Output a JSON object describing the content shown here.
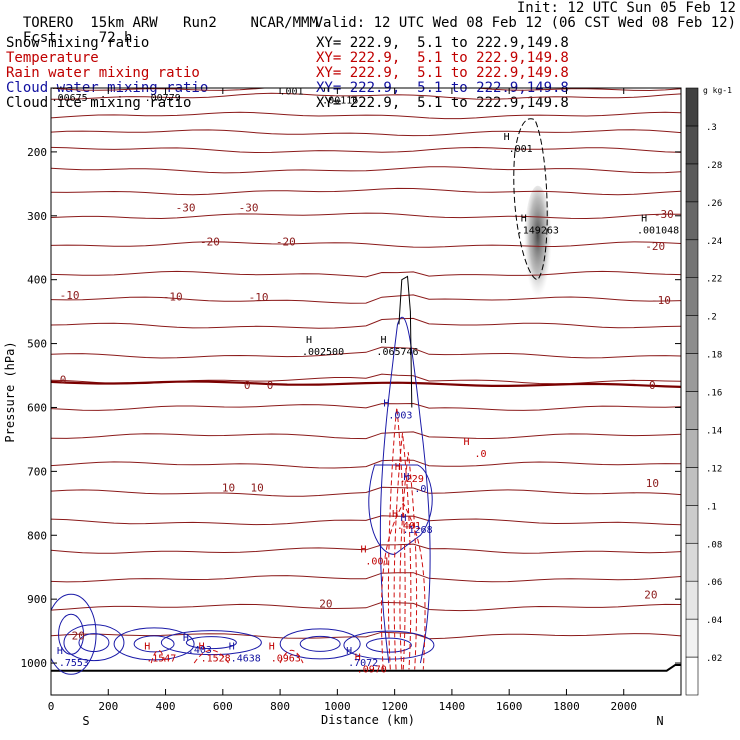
{
  "header": {
    "model": "TORERO",
    "resolution": "15km ARW",
    "run": "Run2",
    "org": "NCAR/MMM",
    "init": "Init: 12 UTC Sun 05 Feb 12",
    "fcst_label": "Fcst:",
    "fcst_hours": "72 h",
    "valid": "Valid: 12 UTC Wed 08 Feb 12 (06 CST Wed 08 Feb 12)"
  },
  "fields": [
    {
      "name": "Snow mixing ratio",
      "xy": "XY= 222.9,  5.1 to 222.9,149.8",
      "color": "#000000"
    },
    {
      "name": "Temperature",
      "xy": "XY= 222.9,  5.1 to 222.9,149.8",
      "color": "#c00000"
    },
    {
      "name": "Rain water mixing ratio",
      "xy": "XY= 222.9,  5.1 to 222.9,149.8",
      "color": "#c00000"
    },
    {
      "name": "Cloud water mixing ratio",
      "xy": "XY= 222.9,  5.1 to 222.9,149.8",
      "color": "#1010a0"
    },
    {
      "name": "Cloud ice mixing ratio",
      "xy": "XY= 222.9,  5.1 to 222.9,149.8",
      "color": "#000000"
    }
  ],
  "chart_data": {
    "type": "contour_cross_section",
    "xlabel": "Distance (km)",
    "ylabel": "Pressure (hPa)",
    "xlim": [
      0,
      2200
    ],
    "ylim": [
      1050,
      100
    ],
    "x_ticks": [
      0,
      200,
      400,
      600,
      800,
      1000,
      1200,
      1400,
      1600,
      1800,
      2000
    ],
    "y_ticks": [
      200,
      300,
      400,
      500,
      600,
      700,
      800,
      900,
      1000
    ],
    "x_end_labels": {
      "left": "S",
      "right": "N"
    },
    "colorbar": {
      "units": "g kg-1",
      "ticks": [
        0.02,
        0.04,
        0.06,
        0.08,
        0.1,
        0.12,
        0.14,
        0.16,
        0.18,
        0.2,
        0.22,
        0.24,
        0.26,
        0.28,
        0.3
      ],
      "tick_labels": [
        ".02",
        ".04",
        ".06",
        ".08",
        ".1",
        ".12",
        ".14",
        ".16",
        ".18",
        ".2",
        ".22",
        ".24",
        ".26",
        ".28",
        ".3"
      ]
    },
    "temperature_contours": [
      {
        "value": "-30",
        "labels": [
          {
            "x": 470,
            "p": 287
          },
          {
            "x": 690,
            "p": 287
          },
          {
            "x": 2140,
            "p": 297
          }
        ]
      },
      {
        "value": "-20",
        "labels": [
          {
            "x": 555,
            "p": 340
          },
          {
            "x": 820,
            "p": 340
          },
          {
            "x": 2110,
            "p": 347
          }
        ]
      },
      {
        "value": "-10",
        "labels": [
          {
            "x": 65,
            "p": 424
          },
          {
            "x": 425,
            "p": 426
          },
          {
            "x": 725,
            "p": 427
          },
          {
            "x": 2130,
            "p": 432
          }
        ]
      },
      {
        "value": "0",
        "labels": [
          {
            "x": 42,
            "p": 556
          },
          {
            "x": 685,
            "p": 565
          },
          {
            "x": 765,
            "p": 565
          },
          {
            "x": 2100,
            "p": 565
          }
        ]
      },
      {
        "value": "10",
        "labels": [
          {
            "x": 620,
            "p": 725
          },
          {
            "x": 720,
            "p": 725
          },
          {
            "x": 2100,
            "p": 718
          }
        ]
      },
      {
        "value": "20",
        "labels": [
          {
            "x": 95,
            "p": 957
          },
          {
            "x": 960,
            "p": 907
          },
          {
            "x": 2095,
            "p": 893
          }
        ]
      }
    ],
    "temperature_isotherms_hPa": [
      100,
      113,
      143,
      170,
      197,
      228,
      262,
      300,
      345,
      392,
      432,
      472,
      518,
      558,
      600,
      645,
      690,
      734,
      779,
      824,
      868,
      913,
      958
    ],
    "zero_isotherm_hPa": 560,
    "highs": [
      {
        "field": "snow",
        "label": ".001",
        "x": 1640,
        "p": 188
      },
      {
        "field": "snow",
        "label": ".149263",
        "x": 1700,
        "p": 315
      },
      {
        "field": "snow",
        "label": ".001048",
        "x": 2120,
        "p": 315
      },
      {
        "field": "snow",
        "label": ".002500",
        "x": 950,
        "p": 505
      },
      {
        "field": "snow",
        "label": ".065746",
        "x": 1210,
        "p": 505
      },
      {
        "field": "snow",
        "label": ".00779",
        "x": 390,
        "p": 108
      },
      {
        "field": "snow",
        "label": ".00675",
        "x": 65,
        "p": 108
      },
      {
        "field": "snow",
        "label": ".00116",
        "x": 1010,
        "p": 112
      },
      {
        "field": "snow",
        "label": ".001",
        "x": 840,
        "p": 98
      },
      {
        "field": "rain",
        "label": ".0",
        "x": 1500,
        "p": 665
      },
      {
        "field": "rain",
        "label": ".229",
        "x": 1260,
        "p": 704
      },
      {
        "field": "rain",
        "label": ".401",
        "x": 1250,
        "p": 778
      },
      {
        "field": "rain",
        "label": ".001",
        "x": 1140,
        "p": 833
      },
      {
        "field": "rain",
        "label": ".1547",
        "x": 385,
        "p": 985
      },
      {
        "field": "rain",
        "label": ".1528",
        "x": 575,
        "p": 985
      },
      {
        "field": "rain",
        "label": ".0963",
        "x": 820,
        "p": 985
      },
      {
        "field": "rain",
        "label": ".0970",
        "x": 1120,
        "p": 1002
      },
      {
        "field": "cloud_water",
        "label": ".403",
        "x": 520,
        "p": 972
      },
      {
        "field": "cloud_water",
        "label": ".4638",
        "x": 680,
        "p": 985
      },
      {
        "field": "cloud_water",
        "label": ".7553",
        "x": 80,
        "p": 992
      },
      {
        "field": "cloud_water",
        "label": ".7072",
        "x": 1090,
        "p": 992
      },
      {
        "field": "cloud_water",
        "label": ".1268",
        "x": 1280,
        "p": 784
      },
      {
        "field": "cloud_water",
        "label": ".003",
        "x": 1220,
        "p": 605
      },
      {
        "field": "cloud_water",
        "label": ".0",
        "x": 1290,
        "p": 720
      }
    ]
  }
}
